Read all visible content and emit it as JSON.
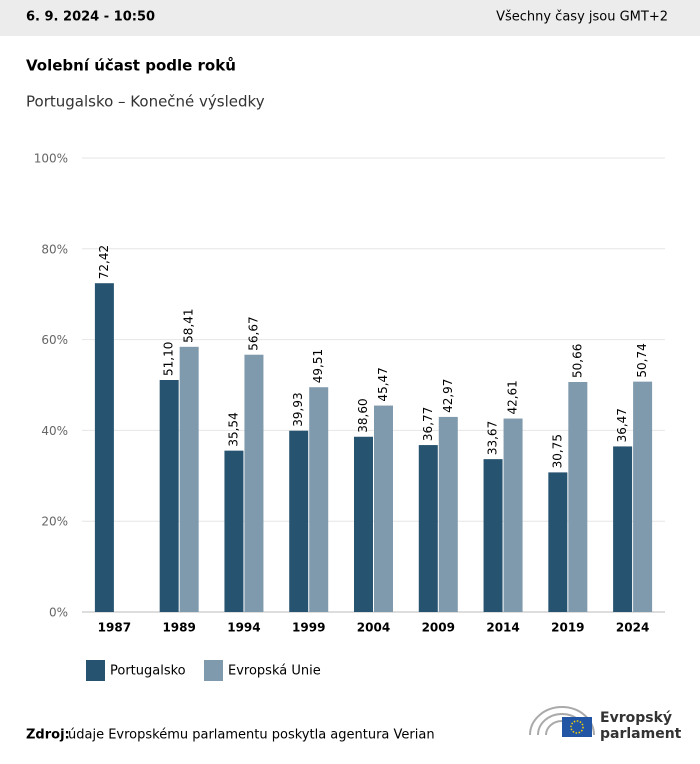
{
  "header": {
    "date": "6. 9. 2024 - 10:50",
    "timezone": "Všechny časy jsou GMT+2"
  },
  "chart_data": {
    "type": "bar",
    "title": "Volební účast podle roků",
    "subtitle": "Portugalsko – Konečné výsledky",
    "categories": [
      "1987",
      "1989",
      "1994",
      "1999",
      "2004",
      "2009",
      "2014",
      "2019",
      "2024"
    ],
    "series": [
      {
        "name": "Portugalsko",
        "color": "#26536f",
        "values": [
          72.42,
          51.1,
          35.54,
          39.93,
          38.6,
          36.77,
          33.67,
          30.75,
          36.47
        ],
        "value_labels": [
          "72,42",
          "51,10",
          "35,54",
          "39,93",
          "38,60",
          "36,77",
          "33,67",
          "30,75",
          "36,47"
        ]
      },
      {
        "name": "Evropská Unie",
        "color": "#7f99ad",
        "values": [
          null,
          58.41,
          56.67,
          49.51,
          45.47,
          42.97,
          42.61,
          50.66,
          50.74
        ],
        "value_labels": [
          null,
          "58,41",
          "56,67",
          "49,51",
          "45,47",
          "42,97",
          "42,61",
          "50,66",
          "50,74"
        ]
      }
    ],
    "ylim": [
      0,
      100
    ],
    "yticks": [
      {
        "value": 0,
        "label": "0%"
      },
      {
        "value": 20,
        "label": "20%"
      },
      {
        "value": 40,
        "label": "40%"
      },
      {
        "value": 60,
        "label": "60%"
      },
      {
        "value": 80,
        "label": "80%"
      },
      {
        "value": 100,
        "label": "100%"
      }
    ],
    "grid": true
  },
  "source": {
    "label": "Zdroj:",
    "text": "údaje Evropskému parlamentu poskytla agentura Verian"
  },
  "logo": {
    "line1": "Evropský",
    "line2": "parlament"
  }
}
